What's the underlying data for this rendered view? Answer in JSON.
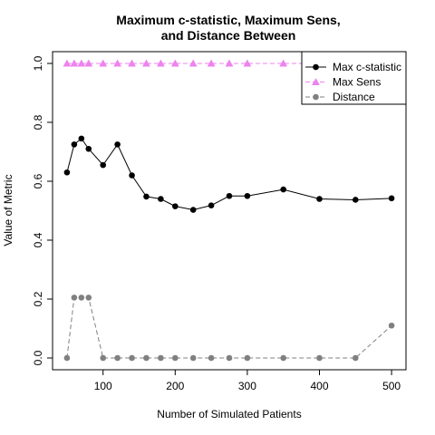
{
  "chart_data": {
    "type": "line",
    "title_line1": "Maximum c-statistic, Maximum Sens,",
    "title_line2": "and Distance Between",
    "xlabel": "Number of Simulated Patients",
    "ylabel": "Value of Metric",
    "xlim": [
      30,
      520
    ],
    "ylim": [
      -0.04,
      1.04
    ],
    "xticks": [
      100,
      200,
      300,
      400,
      500
    ],
    "yticks": [
      0.0,
      0.2,
      0.4,
      0.6,
      0.8,
      1.0
    ],
    "xtick_labels": [
      "100",
      "200",
      "300",
      "400",
      "500"
    ],
    "ytick_labels": [
      "0.0",
      "0.2",
      "0.4",
      "0.6",
      "0.8",
      "1.0"
    ],
    "legend_position": "top-right",
    "x": [
      50,
      60,
      70,
      80,
      100,
      120,
      140,
      160,
      180,
      200,
      225,
      250,
      275,
      300,
      350,
      400,
      450,
      500
    ],
    "series": [
      {
        "name": "Max c-statistic",
        "color": "#000000",
        "marker": "circle",
        "line": "solid",
        "values": [
          0.63,
          0.725,
          0.745,
          0.71,
          0.655,
          0.725,
          0.62,
          0.548,
          0.54,
          0.515,
          0.503,
          0.518,
          0.55,
          0.55,
          0.572,
          0.54,
          0.537,
          0.542
        ]
      },
      {
        "name": "Max Sens",
        "color": "#EE82EE",
        "marker": "triangle",
        "line": "dashed",
        "values": [
          1.0,
          1.0,
          1.0,
          1.0,
          1.0,
          1.0,
          1.0,
          1.0,
          1.0,
          1.0,
          1.0,
          1.0,
          1.0,
          1.0,
          1.0,
          1.0,
          1.0,
          1.0
        ]
      },
      {
        "name": "Distance",
        "color": "#808080",
        "marker": "circle",
        "line": "dashed",
        "values": [
          0.0,
          0.205,
          0.205,
          0.205,
          0.0,
          0.0,
          0.0,
          0.0,
          0.0,
          0.0,
          0.0,
          0.0,
          0.0,
          0.0,
          0.0,
          0.0,
          0.0,
          0.11
        ]
      }
    ]
  }
}
